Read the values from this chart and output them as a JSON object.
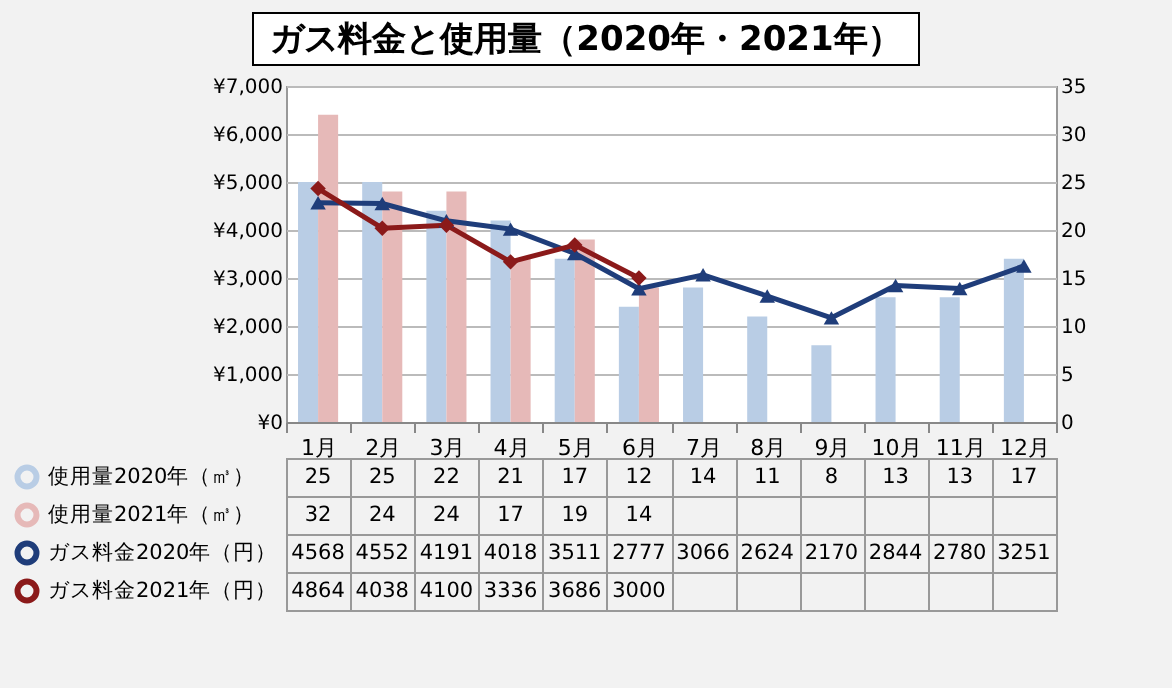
{
  "chart_data": {
    "type": "bar",
    "title": "ガス料金と使用量（2020年・2021年）",
    "categories": [
      "1月",
      "2月",
      "3月",
      "4月",
      "5月",
      "6月",
      "7月",
      "8月",
      "9月",
      "10月",
      "11月",
      "12月"
    ],
    "series": [
      {
        "name": "使用量2020年（㎥）",
        "axis": "y2",
        "color": "#b9cde5",
        "values": [
          25,
          25,
          22,
          21,
          17,
          12,
          14,
          11,
          8,
          13,
          13,
          17
        ]
      },
      {
        "name": "使用量2021年（㎥）",
        "axis": "y2",
        "color": "#e6b9b8",
        "values": [
          32,
          24,
          24,
          17,
          19,
          14,
          null,
          null,
          null,
          null,
          null,
          null
        ]
      },
      {
        "name": "ガス料金2020年（円）",
        "type": "line",
        "color": "#1f3d7a",
        "marker": "triangle",
        "values": [
          4568,
          4552,
          4191,
          4018,
          3511,
          2777,
          3066,
          2624,
          2170,
          2844,
          2780,
          3251
        ]
      },
      {
        "name": "ガス料金2021年（円）",
        "type": "line",
        "color": "#8b1a1a",
        "marker": "diamond",
        "values": [
          4864,
          4038,
          4100,
          3336,
          3686,
          3000,
          null,
          null,
          null,
          null,
          null,
          null
        ]
      }
    ],
    "ylim": [
      0,
      7000
    ],
    "yticks": [
      {
        "value": 0,
        "label": "¥0"
      },
      {
        "value": 1000,
        "label": "¥1,000"
      },
      {
        "value": 2000,
        "label": "¥2,000"
      },
      {
        "value": 3000,
        "label": "¥3,000"
      },
      {
        "value": 4000,
        "label": "¥4,000"
      },
      {
        "value": 5000,
        "label": "¥5,000"
      },
      {
        "value": 6000,
        "label": "¥6,000"
      },
      {
        "value": 7000,
        "label": "¥7,000"
      }
    ],
    "y2lim": [
      0,
      35
    ],
    "y2ticks": [
      0,
      5,
      10,
      15,
      20,
      25,
      30,
      35
    ],
    "grid": "y",
    "legend": "bottom",
    "data_labels": true
  }
}
